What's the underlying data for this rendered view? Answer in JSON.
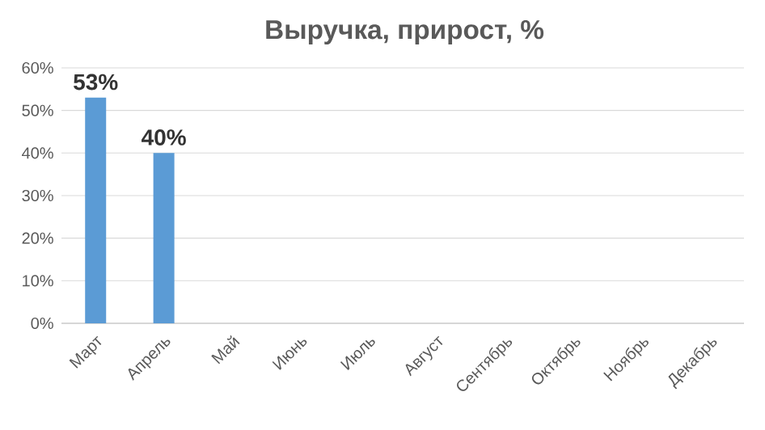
{
  "chart_data": {
    "type": "bar",
    "title": "Выручка, прирост, %",
    "categories": [
      "Март",
      "Апрель",
      "Май",
      "Июнь",
      "Июль",
      "Август",
      "Сентябрь",
      "Октябрь",
      "Ноябрь",
      "Декабрь"
    ],
    "values": [
      53,
      40,
      null,
      null,
      null,
      null,
      null,
      null,
      null,
      null
    ],
    "value_labels": [
      "53%",
      "40%",
      null,
      null,
      null,
      null,
      null,
      null,
      null,
      null
    ],
    "color": "#5b9bd5",
    "ylim": [
      0,
      60
    ],
    "yticks": [
      {
        "value": 0,
        "label": "0%"
      },
      {
        "value": 10,
        "label": "10%"
      },
      {
        "value": 20,
        "label": "20%"
      },
      {
        "value": 30,
        "label": "30%"
      },
      {
        "value": 40,
        "label": "40%"
      },
      {
        "value": 50,
        "label": "50%"
      },
      {
        "value": 60,
        "label": "60%"
      }
    ],
    "grid": "y"
  }
}
